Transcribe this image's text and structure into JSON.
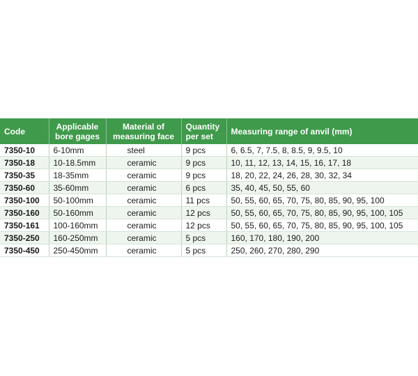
{
  "table": {
    "header": [
      "Code",
      "Applicable\nbore gages",
      "Material of\nmeasuring face",
      "Quantity\nper set",
      "Measuring range of anvil (mm)"
    ],
    "rows": [
      [
        "7350-10",
        "6-10mm",
        "steel",
        "9 pcs",
        "6, 6.5, 7, 7.5, 8, 8.5, 9, 9.5, 10"
      ],
      [
        "7350-18",
        "10-18.5mm",
        "ceramic",
        "9 pcs",
        "10, 11, 12, 13, 14, 15, 16, 17, 18"
      ],
      [
        "7350-35",
        "18-35mm",
        "ceramic",
        "9 pcs",
        "18, 20, 22, 24, 26, 28, 30, 32, 34"
      ],
      [
        "7350-60",
        "35-60mm",
        "ceramic",
        "6 pcs",
        "35, 40, 45, 50, 55, 60"
      ],
      [
        "7350-100",
        "50-100mm",
        "ceramic",
        "11 pcs",
        "50, 55, 60, 65, 70, 75, 80, 85, 90, 95, 100"
      ],
      [
        "7350-160",
        "50-160mm",
        "ceramic",
        "12 pcs",
        "50, 55, 60, 65, 70, 75, 80, 85, 90, 95, 100, 105"
      ],
      [
        "7350-161",
        "100-160mm",
        "ceramic",
        "12 pcs",
        "50, 55, 60, 65, 70, 75, 80, 85, 90, 95, 100, 105"
      ],
      [
        "7350-250",
        "160-250mm",
        "ceramic",
        "5 pcs",
        "160, 170, 180, 190, 200"
      ],
      [
        "7350-450",
        "250-450mm",
        "ceramic",
        "5 pcs",
        "250, 260, 270, 280, 290"
      ]
    ]
  }
}
